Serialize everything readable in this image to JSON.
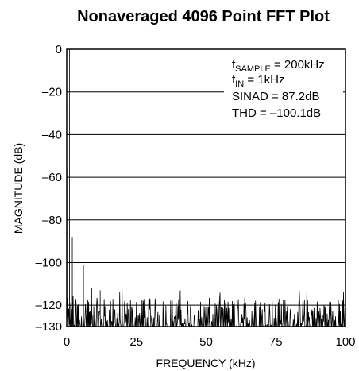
{
  "chart_data": {
    "type": "line",
    "title": "Nonaveraged 4096 Point FFT Plot",
    "xlabel": "FREQUENCY (kHz)",
    "ylabel": "MAGNITUDE (dB)",
    "xlim": [
      0,
      100
    ],
    "ylim": [
      -130,
      0
    ],
    "xticks": [
      "0",
      "25",
      "50",
      "75",
      "100"
    ],
    "yticks": [
      "0",
      "–20",
      "–40",
      "–60",
      "–80",
      "–100",
      "–120",
      "–130"
    ],
    "grid": "horizontal",
    "annotations": [
      {
        "main": "f",
        "sub": "SAMPLE",
        "rest": " = 200kHz"
      },
      {
        "main": "f",
        "sub": "IN",
        "rest": " = 1kHz"
      },
      {
        "main": "SINAD = 87.2dB"
      },
      {
        "main": "THD = –100.1dB"
      }
    ],
    "spikes": [
      {
        "x": 0.05,
        "y": -55
      },
      {
        "x": 1.0,
        "y": 0
      },
      {
        "x": 2.0,
        "y": -88
      },
      {
        "x": 3.0,
        "y": -107
      },
      {
        "x": 6.0,
        "y": -101
      },
      {
        "x": 9.0,
        "y": -112
      },
      {
        "x": 12.0,
        "y": -113
      }
    ],
    "noise_floor": {
      "min": -130,
      "max": -112
    }
  }
}
